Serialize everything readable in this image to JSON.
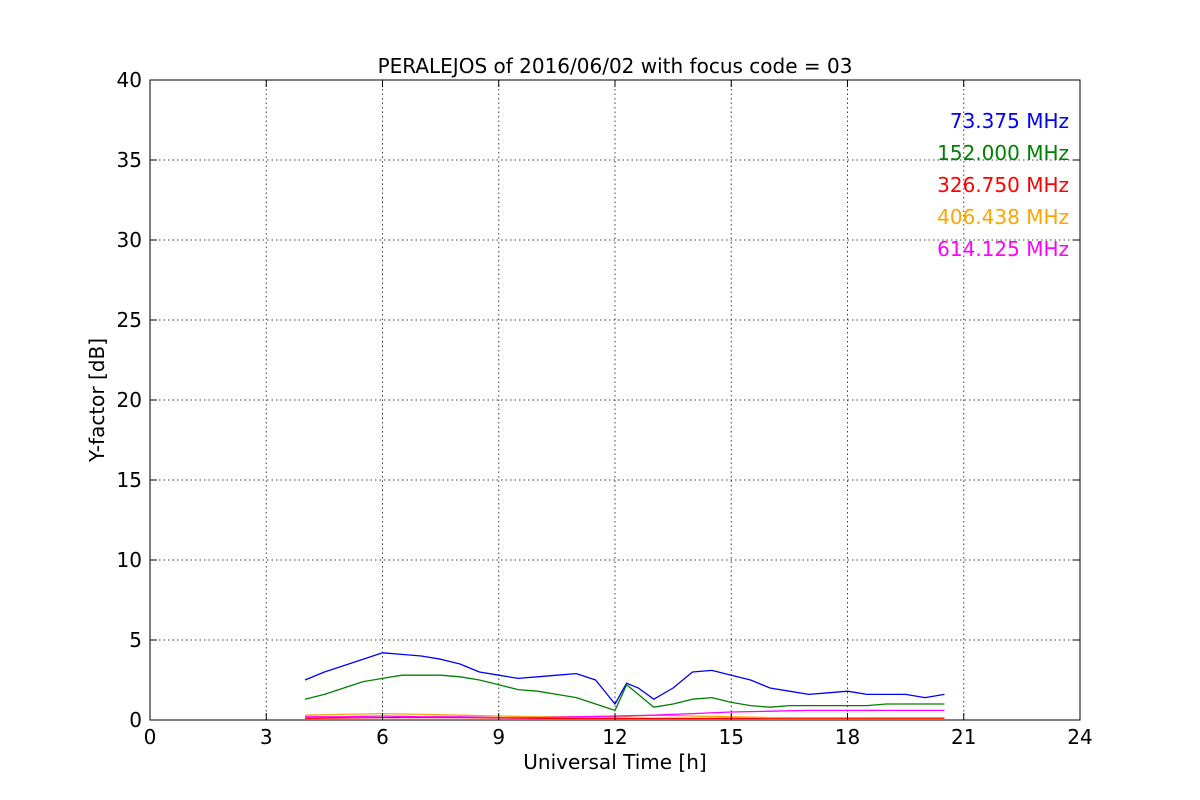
{
  "chart_data": {
    "type": "line",
    "title": "PERALEJOS of 2016/06/02 with focus code = 03",
    "xlabel": "Universal Time [h]",
    "ylabel": "Y-factor [dB]",
    "xlim": [
      0,
      24
    ],
    "ylim": [
      0,
      40
    ],
    "xticks": [
      "0",
      "3",
      "6",
      "9",
      "12",
      "15",
      "18",
      "21",
      "24"
    ],
    "yticks": [
      "0",
      "5",
      "10",
      "15",
      "20",
      "25",
      "30",
      "35",
      "40"
    ],
    "grid": true,
    "legend_placement": "top-right",
    "series": [
      {
        "name": "73.375 MHz",
        "color": "#0000ff",
        "x": [
          4.0,
          4.5,
          5.0,
          5.5,
          6.0,
          6.5,
          7.0,
          7.5,
          8.0,
          8.5,
          9.0,
          9.5,
          10.0,
          10.5,
          11.0,
          11.5,
          12.0,
          12.3,
          12.6,
          13.0,
          13.5,
          14.0,
          14.5,
          15.0,
          15.5,
          16.0,
          16.5,
          17.0,
          17.5,
          18.0,
          18.5,
          19.0,
          19.5,
          20.0,
          20.5
        ],
        "y": [
          2.5,
          3.0,
          3.4,
          3.8,
          4.2,
          4.1,
          4.0,
          3.8,
          3.5,
          3.0,
          2.8,
          2.6,
          2.7,
          2.8,
          2.9,
          2.5,
          1.0,
          2.3,
          2.0,
          1.3,
          2.0,
          3.0,
          3.1,
          2.8,
          2.5,
          2.0,
          1.8,
          1.6,
          1.7,
          1.8,
          1.6,
          1.6,
          1.6,
          1.4,
          1.6
        ]
      },
      {
        "name": "152.000 MHz",
        "color": "#008000",
        "x": [
          4.0,
          4.5,
          5.0,
          5.5,
          6.0,
          6.5,
          7.0,
          7.5,
          8.0,
          8.5,
          9.0,
          9.5,
          10.0,
          10.5,
          11.0,
          11.5,
          12.0,
          12.3,
          12.6,
          13.0,
          13.5,
          14.0,
          14.5,
          15.0,
          15.5,
          16.0,
          16.5,
          17.0,
          17.5,
          18.0,
          18.5,
          19.0,
          19.5,
          20.0,
          20.5
        ],
        "y": [
          1.3,
          1.6,
          2.0,
          2.4,
          2.6,
          2.8,
          2.8,
          2.8,
          2.7,
          2.5,
          2.2,
          1.9,
          1.8,
          1.6,
          1.4,
          1.0,
          0.6,
          2.2,
          1.6,
          0.8,
          1.0,
          1.3,
          1.4,
          1.1,
          0.9,
          0.8,
          0.9,
          0.9,
          0.9,
          0.9,
          0.9,
          1.0,
          1.0,
          1.0,
          1.0
        ]
      },
      {
        "name": "326.750 MHz",
        "color": "#ff0000",
        "x": [
          4.0,
          6.0,
          8.0,
          10.0,
          12.0,
          14.0,
          16.0,
          18.0,
          20.5
        ],
        "y": [
          0.1,
          0.15,
          0.15,
          0.1,
          0.1,
          0.1,
          0.1,
          0.1,
          0.1
        ]
      },
      {
        "name": "406.438 MHz",
        "color": "#ffa500",
        "x": [
          4.0,
          5.0,
          6.0,
          7.0,
          8.0,
          9.0,
          10.0,
          11.0,
          12.0,
          13.0,
          14.0,
          15.0,
          16.0,
          17.0,
          18.0,
          19.0,
          20.5
        ],
        "y": [
          0.3,
          0.35,
          0.4,
          0.35,
          0.3,
          0.25,
          0.2,
          0.2,
          0.2,
          0.3,
          0.25,
          0.2,
          0.15,
          0.15,
          0.15,
          0.15,
          0.15
        ]
      },
      {
        "name": "614.125 MHz",
        "color": "#ff00ff",
        "x": [
          4.0,
          5.0,
          6.0,
          7.0,
          8.0,
          9.0,
          10.0,
          11.0,
          12.0,
          13.0,
          14.0,
          15.0,
          16.0,
          17.0,
          18.0,
          19.0,
          20.0,
          20.5
        ],
        "y": [
          0.2,
          0.2,
          0.25,
          0.2,
          0.2,
          0.15,
          0.15,
          0.2,
          0.25,
          0.3,
          0.4,
          0.5,
          0.55,
          0.6,
          0.6,
          0.6,
          0.6,
          0.6
        ]
      }
    ]
  }
}
